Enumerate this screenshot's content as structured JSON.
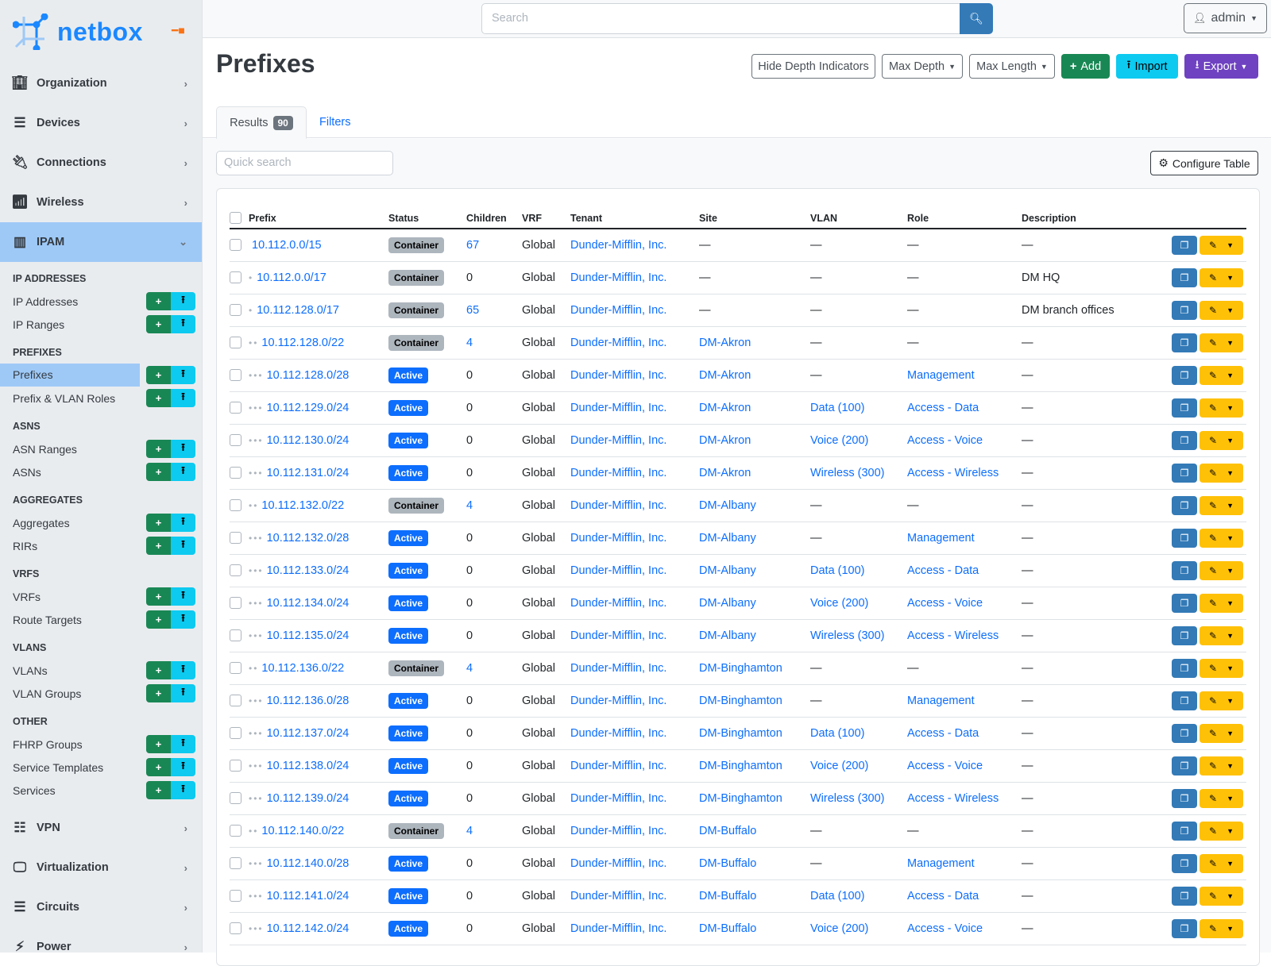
{
  "brand": {
    "name": "netbox",
    "accent": "#1b88ff"
  },
  "sidebar": {
    "top_items": [
      {
        "label": "Organization",
        "icon": "building-icon"
      },
      {
        "label": "Devices",
        "icon": "server-icon"
      },
      {
        "label": "Connections",
        "icon": "plug-icon"
      },
      {
        "label": "Wireless",
        "icon": "wifi-icon"
      },
      {
        "label": "IPAM",
        "icon": "ipam-icon"
      }
    ],
    "sections": [
      {
        "heading": "IP ADDRESSES",
        "items": [
          "IP Addresses",
          "IP Ranges"
        ]
      },
      {
        "heading": "PREFIXES",
        "items": [
          "Prefixes",
          "Prefix & VLAN Roles"
        ]
      },
      {
        "heading": "ASNS",
        "items": [
          "ASN Ranges",
          "ASNs"
        ]
      },
      {
        "heading": "AGGREGATES",
        "items": [
          "Aggregates",
          "RIRs"
        ]
      },
      {
        "heading": "VRFS",
        "items": [
          "VRFs",
          "Route Targets"
        ]
      },
      {
        "heading": "VLANS",
        "items": [
          "VLANs",
          "VLAN Groups"
        ]
      },
      {
        "heading": "OTHER",
        "items": [
          "FHRP Groups",
          "Service Templates",
          "Services"
        ]
      }
    ],
    "active_item": "Prefixes",
    "bottom_items": [
      {
        "label": "VPN",
        "icon": "vpn-icon"
      },
      {
        "label": "Virtualization",
        "icon": "monitor-icon"
      },
      {
        "label": "Circuits",
        "icon": "circuits-icon"
      },
      {
        "label": "Power",
        "icon": "bolt-icon"
      }
    ]
  },
  "topbar": {
    "search_placeholder": "Search",
    "user": "admin"
  },
  "page": {
    "title": "Prefixes",
    "buttons": {
      "hide_depth": "Hide Depth Indicators",
      "max_depth": "Max Depth",
      "max_length": "Max Length",
      "add": "Add",
      "import": "Import",
      "export": "Export"
    },
    "tabs": {
      "results": "Results",
      "results_count": "90",
      "filters": "Filters"
    },
    "quick_search_placeholder": "Quick search",
    "configure_table": "Configure Table"
  },
  "table": {
    "columns": [
      "Prefix",
      "Status",
      "Children",
      "VRF",
      "Tenant",
      "Site",
      "VLAN",
      "Role",
      "Description"
    ],
    "rows": [
      {
        "depth": 0,
        "prefix": "10.112.0.0/15",
        "status": "Container",
        "children": "67",
        "vrf": "Global",
        "tenant": "Dunder-Mifflin, Inc.",
        "site": "—",
        "vlan": "—",
        "role": "—",
        "description": "—"
      },
      {
        "depth": 1,
        "prefix": "10.112.0.0/17",
        "status": "Container",
        "children": "0",
        "vrf": "Global",
        "tenant": "Dunder-Mifflin, Inc.",
        "site": "—",
        "vlan": "—",
        "role": "—",
        "description": "DM HQ"
      },
      {
        "depth": 1,
        "prefix": "10.112.128.0/17",
        "status": "Container",
        "children": "65",
        "vrf": "Global",
        "tenant": "Dunder-Mifflin, Inc.",
        "site": "—",
        "vlan": "—",
        "role": "—",
        "description": "DM branch offices"
      },
      {
        "depth": 2,
        "prefix": "10.112.128.0/22",
        "status": "Container",
        "children": "4",
        "vrf": "Global",
        "tenant": "Dunder-Mifflin, Inc.",
        "site": "DM-Akron",
        "vlan": "—",
        "role": "—",
        "description": "—"
      },
      {
        "depth": 3,
        "prefix": "10.112.128.0/28",
        "status": "Active",
        "children": "0",
        "vrf": "Global",
        "tenant": "Dunder-Mifflin, Inc.",
        "site": "DM-Akron",
        "vlan": "—",
        "role": "Management",
        "description": "—"
      },
      {
        "depth": 3,
        "prefix": "10.112.129.0/24",
        "status": "Active",
        "children": "0",
        "vrf": "Global",
        "tenant": "Dunder-Mifflin, Inc.",
        "site": "DM-Akron",
        "vlan": "Data (100)",
        "role": "Access - Data",
        "description": "—"
      },
      {
        "depth": 3,
        "prefix": "10.112.130.0/24",
        "status": "Active",
        "children": "0",
        "vrf": "Global",
        "tenant": "Dunder-Mifflin, Inc.",
        "site": "DM-Akron",
        "vlan": "Voice (200)",
        "role": "Access - Voice",
        "description": "—"
      },
      {
        "depth": 3,
        "prefix": "10.112.131.0/24",
        "status": "Active",
        "children": "0",
        "vrf": "Global",
        "tenant": "Dunder-Mifflin, Inc.",
        "site": "DM-Akron",
        "vlan": "Wireless (300)",
        "role": "Access - Wireless",
        "description": "—"
      },
      {
        "depth": 2,
        "prefix": "10.112.132.0/22",
        "status": "Container",
        "children": "4",
        "vrf": "Global",
        "tenant": "Dunder-Mifflin, Inc.",
        "site": "DM-Albany",
        "vlan": "—",
        "role": "—",
        "description": "—"
      },
      {
        "depth": 3,
        "prefix": "10.112.132.0/28",
        "status": "Active",
        "children": "0",
        "vrf": "Global",
        "tenant": "Dunder-Mifflin, Inc.",
        "site": "DM-Albany",
        "vlan": "—",
        "role": "Management",
        "description": "—"
      },
      {
        "depth": 3,
        "prefix": "10.112.133.0/24",
        "status": "Active",
        "children": "0",
        "vrf": "Global",
        "tenant": "Dunder-Mifflin, Inc.",
        "site": "DM-Albany",
        "vlan": "Data (100)",
        "role": "Access - Data",
        "description": "—"
      },
      {
        "depth": 3,
        "prefix": "10.112.134.0/24",
        "status": "Active",
        "children": "0",
        "vrf": "Global",
        "tenant": "Dunder-Mifflin, Inc.",
        "site": "DM-Albany",
        "vlan": "Voice (200)",
        "role": "Access - Voice",
        "description": "—"
      },
      {
        "depth": 3,
        "prefix": "10.112.135.0/24",
        "status": "Active",
        "children": "0",
        "vrf": "Global",
        "tenant": "Dunder-Mifflin, Inc.",
        "site": "DM-Albany",
        "vlan": "Wireless (300)",
        "role": "Access - Wireless",
        "description": "—"
      },
      {
        "depth": 2,
        "prefix": "10.112.136.0/22",
        "status": "Container",
        "children": "4",
        "vrf": "Global",
        "tenant": "Dunder-Mifflin, Inc.",
        "site": "DM-Binghamton",
        "vlan": "—",
        "role": "—",
        "description": "—"
      },
      {
        "depth": 3,
        "prefix": "10.112.136.0/28",
        "status": "Active",
        "children": "0",
        "vrf": "Global",
        "tenant": "Dunder-Mifflin, Inc.",
        "site": "DM-Binghamton",
        "vlan": "—",
        "role": "Management",
        "description": "—"
      },
      {
        "depth": 3,
        "prefix": "10.112.137.0/24",
        "status": "Active",
        "children": "0",
        "vrf": "Global",
        "tenant": "Dunder-Mifflin, Inc.",
        "site": "DM-Binghamton",
        "vlan": "Data (100)",
        "role": "Access - Data",
        "description": "—"
      },
      {
        "depth": 3,
        "prefix": "10.112.138.0/24",
        "status": "Active",
        "children": "0",
        "vrf": "Global",
        "tenant": "Dunder-Mifflin, Inc.",
        "site": "DM-Binghamton",
        "vlan": "Voice (200)",
        "role": "Access - Voice",
        "description": "—"
      },
      {
        "depth": 3,
        "prefix": "10.112.139.0/24",
        "status": "Active",
        "children": "0",
        "vrf": "Global",
        "tenant": "Dunder-Mifflin, Inc.",
        "site": "DM-Binghamton",
        "vlan": "Wireless (300)",
        "role": "Access - Wireless",
        "description": "—"
      },
      {
        "depth": 2,
        "prefix": "10.112.140.0/22",
        "status": "Container",
        "children": "4",
        "vrf": "Global",
        "tenant": "Dunder-Mifflin, Inc.",
        "site": "DM-Buffalo",
        "vlan": "—",
        "role": "—",
        "description": "—"
      },
      {
        "depth": 3,
        "prefix": "10.112.140.0/28",
        "status": "Active",
        "children": "0",
        "vrf": "Global",
        "tenant": "Dunder-Mifflin, Inc.",
        "site": "DM-Buffalo",
        "vlan": "—",
        "role": "Management",
        "description": "—"
      },
      {
        "depth": 3,
        "prefix": "10.112.141.0/24",
        "status": "Active",
        "children": "0",
        "vrf": "Global",
        "tenant": "Dunder-Mifflin, Inc.",
        "site": "DM-Buffalo",
        "vlan": "Data (100)",
        "role": "Access - Data",
        "description": "—"
      },
      {
        "depth": 3,
        "prefix": "10.112.142.0/24",
        "status": "Active",
        "children": "0",
        "vrf": "Global",
        "tenant": "Dunder-Mifflin, Inc.",
        "site": "DM-Buffalo",
        "vlan": "Voice (200)",
        "role": "Access - Voice",
        "description": "—"
      }
    ]
  }
}
